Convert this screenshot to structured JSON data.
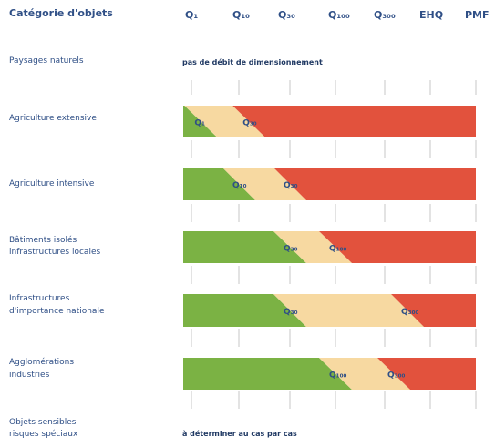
{
  "header": {
    "category_label": "Catégorie d'objets"
  },
  "columns": [
    "Q₁",
    "Q₁₀",
    "Q₃₀",
    "Q₁₀₀",
    "Q₃₀₀",
    "EHQ",
    "PMF"
  ],
  "notes": {
    "natural": "pas de débit de dimensionnement",
    "sensitive": "à déterminer au cas par cas"
  },
  "rows": [
    {
      "label_lines": [
        "Paysages naturels"
      ]
    },
    {
      "label_lines": [
        "Agriculture extensive"
      ],
      "band": {
        "green": [
          0,
          0.2
        ],
        "yellow": [
          0.2,
          1.2
        ],
        "red": [
          1.2,
          6.2
        ]
      },
      "markers": [
        {
          "label": "Q₁",
          "at": 0.2
        },
        {
          "label": "Q₃₀",
          "at": 1.2
        }
      ]
    },
    {
      "label_lines": [
        "Agriculture intensive"
      ],
      "band": {
        "green": [
          0,
          1.0
        ],
        "yellow": [
          1.0,
          2.0
        ],
        "red": [
          2.0,
          6.2
        ]
      },
      "markers": [
        {
          "label": "Q₁₀",
          "at": 1.0
        },
        {
          "label": "Q₃₀",
          "at": 2.0
        }
      ]
    },
    {
      "label_lines": [
        "Bâtiments isolés",
        "infrastructures locales"
      ],
      "band": {
        "green": [
          0,
          2.0
        ],
        "yellow": [
          2.0,
          3.0
        ],
        "red": [
          3.0,
          6.2
        ]
      },
      "markers": [
        {
          "label": "Q₃₀",
          "at": 2.0
        },
        {
          "label": "Q₁₀₀",
          "at": 3.0
        }
      ]
    },
    {
      "label_lines": [
        "Infrastructures",
        "d'importance nationale"
      ],
      "band": {
        "green": [
          0,
          2.0
        ],
        "yellow": [
          2.0,
          4.5
        ],
        "red": [
          4.5,
          6.2
        ]
      },
      "markers": [
        {
          "label": "Q₃₀",
          "at": 2.0
        },
        {
          "label": "Q₃₀₀",
          "at": 4.5
        }
      ]
    },
    {
      "label_lines": [
        "Agglomérations",
        "industries"
      ],
      "band": {
        "green": [
          0,
          3.0
        ],
        "yellow": [
          3.0,
          4.2
        ],
        "red": [
          4.2,
          6.2
        ]
      },
      "markers": [
        {
          "label": "Q₁₀₀",
          "at": 3.0
        },
        {
          "label": "Q₃₀₀",
          "at": 4.2
        }
      ]
    },
    {
      "label_lines": [
        "Objets sensibles",
        "risques spéciaux"
      ]
    }
  ],
  "colors": {
    "green": "#7bb244",
    "yellow": "#f7d9a1",
    "red": "#e2523d",
    "text": "#2f4f86",
    "grid": "#c7c7c7"
  }
}
